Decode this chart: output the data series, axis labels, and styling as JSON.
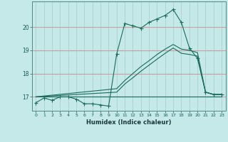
{
  "xlabel": "Humidex (Indice chaleur)",
  "bg_color": "#c5e8e8",
  "line_color": "#1a6b5a",
  "grid_color_h": "#c8a0a0",
  "grid_color_v": "#a8cccc",
  "xlim": [
    -0.5,
    23.5
  ],
  "ylim": [
    16.4,
    21.1
  ],
  "yticks": [
    17,
    18,
    19,
    20
  ],
  "xticks": [
    0,
    1,
    2,
    3,
    4,
    5,
    6,
    7,
    8,
    9,
    10,
    11,
    12,
    13,
    14,
    15,
    16,
    17,
    18,
    19,
    20,
    21,
    22,
    23
  ],
  "line1_x": [
    0,
    1,
    2,
    3,
    4,
    5,
    6,
    7,
    8,
    9,
    10,
    11,
    12,
    13,
    14,
    15,
    16,
    17,
    18,
    19,
    20,
    21,
    22,
    23
  ],
  "line1_y": [
    16.75,
    16.95,
    16.85,
    17.0,
    17.0,
    16.9,
    16.7,
    16.7,
    16.65,
    16.6,
    18.85,
    20.15,
    20.05,
    19.95,
    20.2,
    20.35,
    20.5,
    20.75,
    20.2,
    19.1,
    18.65,
    17.2,
    17.1,
    17.1
  ],
  "line2_x": [
    0,
    23
  ],
  "line2_y": [
    17.0,
    17.0
  ],
  "line3_x": [
    0,
    10,
    11,
    12,
    13,
    14,
    15,
    16,
    17,
    18,
    19,
    20,
    21,
    22,
    23
  ],
  "line3_y": [
    17.0,
    17.35,
    17.7,
    18.0,
    18.3,
    18.55,
    18.82,
    19.05,
    19.25,
    19.05,
    19.0,
    18.9,
    17.2,
    17.1,
    17.1
  ],
  "line4_x": [
    0,
    10,
    11,
    12,
    13,
    14,
    15,
    16,
    17,
    18,
    19,
    20,
    21,
    22,
    23
  ],
  "line4_y": [
    17.0,
    17.2,
    17.55,
    17.82,
    18.1,
    18.36,
    18.62,
    18.87,
    19.1,
    18.87,
    18.82,
    18.75,
    17.2,
    17.1,
    17.1
  ]
}
